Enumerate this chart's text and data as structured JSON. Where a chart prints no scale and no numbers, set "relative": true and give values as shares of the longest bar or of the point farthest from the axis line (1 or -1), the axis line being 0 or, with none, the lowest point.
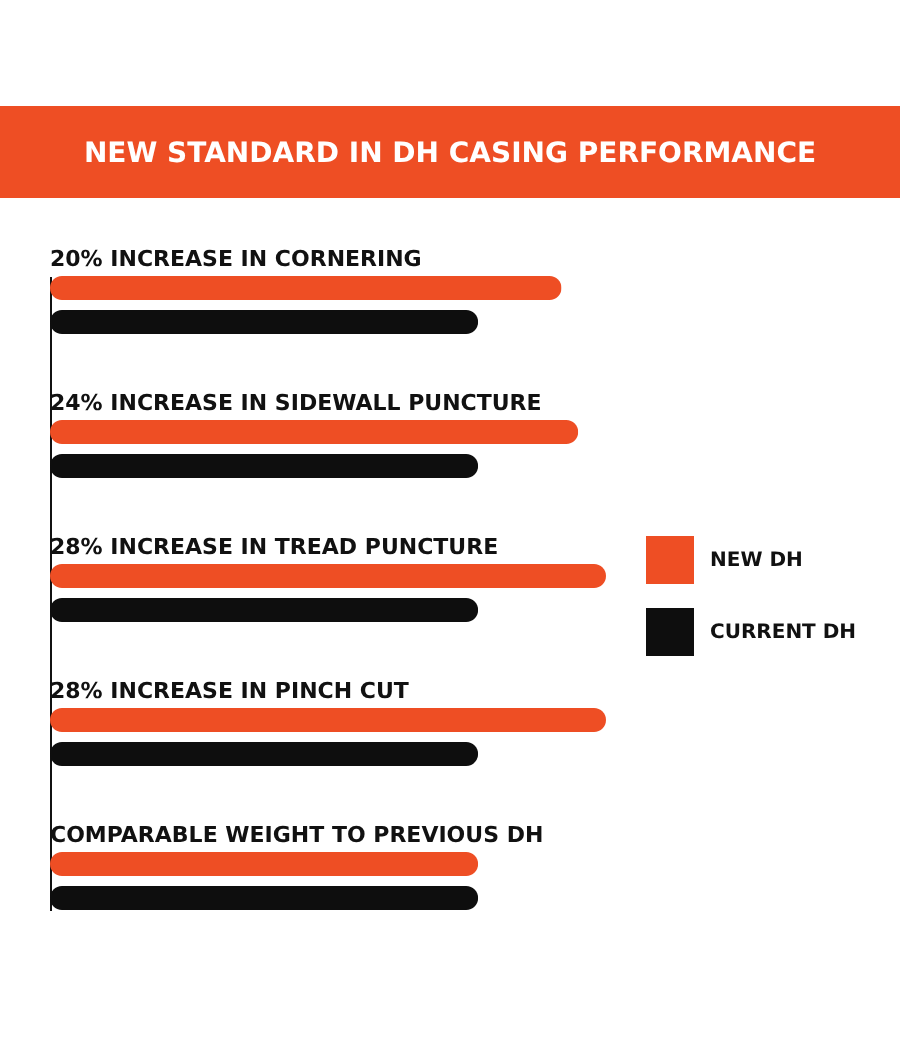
{
  "chart_data": {
    "type": "bar",
    "title": "NEW STANDARD IN DH CASING PERFORMANCE",
    "orientation": "horizontal",
    "relative": true,
    "legend": "right",
    "categories": [
      "20% INCREASE IN CORNERING",
      "24% INCREASE IN SIDEWALL PUNCTURE",
      "28% INCREASE IN TREAD PUNCTURE",
      "28% INCREASE IN PINCH CUT",
      "COMPARABLE WEIGHT TO PREVIOUS DH"
    ],
    "series": [
      {
        "name": "NEW DH",
        "color": "#ee4e24",
        "values": [
          0.92,
          0.95,
          1,
          1,
          0.77
        ]
      },
      {
        "name": "CURRENT DH",
        "color": "#0e0e0e",
        "values": [
          0.77,
          0.77,
          0.77,
          0.77,
          0.77
        ]
      }
    ]
  }
}
